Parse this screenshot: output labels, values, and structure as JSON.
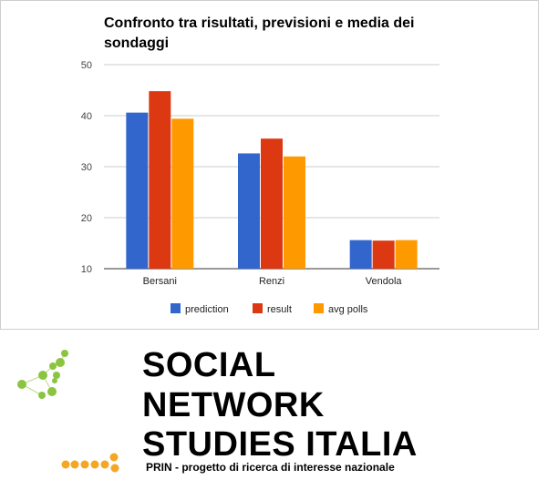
{
  "chart_data": {
    "type": "bar",
    "title": "Confronto tra risultati, previsioni e media dei sondaggi",
    "categories": [
      "Bersani",
      "Renzi",
      "Vendola"
    ],
    "series": [
      {
        "name": "prediction",
        "color": "#3366cc",
        "values": [
          40.6,
          32.6,
          15.6
        ]
      },
      {
        "name": "result",
        "color": "#dc3912",
        "values": [
          44.8,
          35.5,
          15.5
        ]
      },
      {
        "name": "avg polls",
        "color": "#ff9900",
        "values": [
          39.4,
          32.0,
          15.6
        ]
      }
    ],
    "yticks": [
      10,
      20,
      30,
      40,
      50
    ],
    "ylim": [
      10,
      50
    ],
    "xlabel": "",
    "ylabel": "",
    "grid": true,
    "legend_position": "bottom"
  },
  "branding": {
    "line1": "SOCIAL",
    "line2": "NETWORK",
    "line3": "STUDIES ITALIA",
    "subtitle": "PRIN - progetto di ricerca di interesse nazionale",
    "logo_colors": {
      "green": "#8bc53f",
      "orange": "#f5a623"
    }
  }
}
